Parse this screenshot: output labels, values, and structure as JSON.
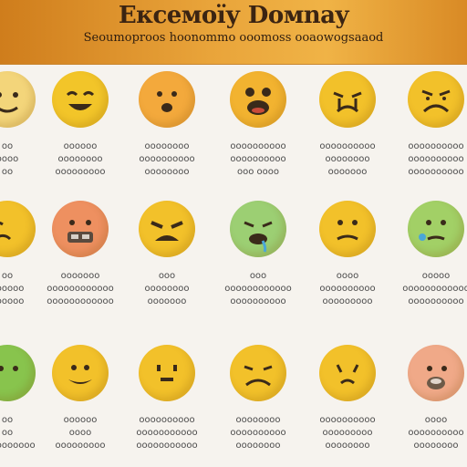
{
  "header": {
    "title": "Ексемоїу Dомnay",
    "subtitle": "Seoumoproos hoonommo ooomoss ooaowogsaaod"
  },
  "emojis": [
    {
      "lines": [
        "oo",
        "oooo",
        "oo"
      ],
      "color": "#f3d57a",
      "icon": "smiling-face-icon"
    },
    {
      "lines": [
        "oooooo",
        "oooooooo",
        "ooooooooo"
      ],
      "color": "#f2c529",
      "icon": "grinning-face-icon"
    },
    {
      "lines": [
        "oooooooo",
        "oooooooooo",
        "oooooooo"
      ],
      "color": "#f3a93c",
      "icon": "surprised-face-icon"
    },
    {
      "lines": [
        "oooooooooo",
        "oooooooooo",
        "ooo oooo"
      ],
      "color": "#f2b330",
      "icon": "screaming-face-icon"
    },
    {
      "lines": [
        "oooooooooo",
        "oooooooo",
        "ooooooo"
      ],
      "color": "#f2c12a",
      "icon": "crying-face-icon"
    },
    {
      "lines": [
        "oooooooooo",
        "oooooooooo",
        "oooooooooo"
      ],
      "color": "#f2c12a",
      "icon": "sad-face-icon"
    },
    {
      "lines": [
        "oo",
        "oooooo",
        "oooooo"
      ],
      "color": "#f2c12a",
      "icon": "tired-face-icon"
    },
    {
      "lines": [
        "ooooooo",
        "oooooooooooo",
        "oooooooooooo"
      ],
      "color": "#ee9060",
      "icon": "face-with-mask-icon"
    },
    {
      "lines": [
        "ooo",
        "oooooooo",
        "ooooooo"
      ],
      "color": "#f2c12a",
      "icon": "loudly-crying-face-icon"
    },
    {
      "lines": [
        "ooo",
        "oooooooooooo",
        "oooooooooo"
      ],
      "color": "#9ccf73",
      "icon": "nauseated-face-icon"
    },
    {
      "lines": [
        "oooo",
        "oooooooooo",
        "ooooooooo"
      ],
      "color": "#f2c12a",
      "icon": "neutral-face-icon"
    },
    {
      "lines": [
        "ooooo",
        "oooooooooooo",
        "oooooooooo"
      ],
      "color": "#a2d066",
      "icon": "sick-face-icon"
    },
    {
      "lines": [
        "oo",
        "oo",
        "oooooooooo"
      ],
      "color": "#88c44d",
      "icon": "green-face-icon"
    },
    {
      "lines": [
        "oooooo",
        "oooo",
        "ooooooooo"
      ],
      "color": "#f2c12a",
      "icon": "grimacing-face-icon"
    },
    {
      "lines": [
        "oooooooooo",
        "ooooooooooo",
        "ooooooooooo"
      ],
      "color": "#f2c12a",
      "icon": "expressionless-face-icon"
    },
    {
      "lines": [
        "oooooooo",
        "oooooooooo",
        "oooooooo"
      ],
      "color": "#f2c12a",
      "icon": "frowning-face-icon"
    },
    {
      "lines": [
        "oooooooooo",
        "ooooooooo",
        "oooooooo"
      ],
      "color": "#f2c12a",
      "icon": "anxious-face-icon"
    },
    {
      "lines": [
        "oooo",
        "oooooooooo",
        "oooooooo"
      ],
      "color": "#f0a988",
      "icon": "face-with-hand-icon"
    }
  ]
}
